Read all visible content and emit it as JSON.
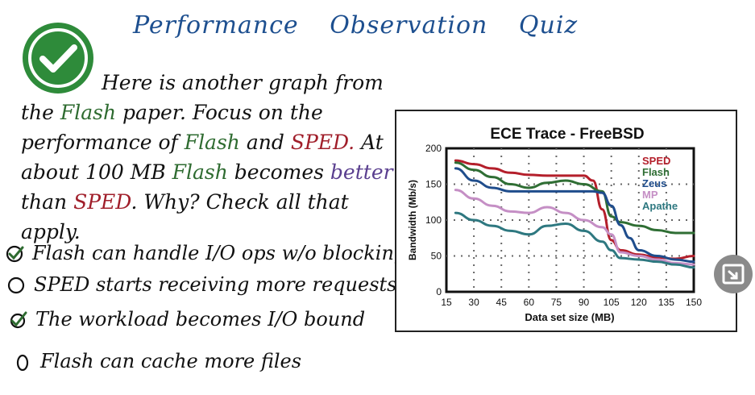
{
  "title": {
    "words": [
      "Performance",
      "Observation",
      "Quiz"
    ]
  },
  "prompt": {
    "line1": "Here is another graph from",
    "line2": {
      "a": "the",
      "b": "Flash",
      "c": "paper. Focus on the"
    },
    "line3": {
      "a": "performance of",
      "b": "Flash",
      "c": "and",
      "d": "SPED.",
      "e": "At"
    },
    "line4": {
      "a": "about 100 MB",
      "b": "Flash",
      "c": "becomes",
      "d": "better"
    },
    "line5": {
      "a": "than",
      "b": "SPED",
      "c": ". Why? Check all that apply."
    }
  },
  "options": [
    {
      "label": "Flash can handle I/O ops w/o blocking",
      "checked": true
    },
    {
      "label": "SPED starts receiving more requests",
      "checked": false
    },
    {
      "label": "The workload becomes I/O bound",
      "checked": true
    },
    {
      "label": "Flash can cache more files",
      "checked": false
    }
  ],
  "icons": {
    "badge": "check-circle-icon",
    "minimize": "minimize-icon"
  },
  "colors": {
    "title": "#1d4f8f",
    "green": "#2e6b30",
    "red": "#a01e2a",
    "purple": "#5a3f8f",
    "badge": "#2e8b3a"
  },
  "chart_data": {
    "type": "line",
    "title": "ECE Trace - FreeBSD",
    "xlabel": "Data set size (MB)",
    "ylabel": "Bandwidth (Mb/s)",
    "xlim": [
      15,
      150
    ],
    "ylim": [
      0,
      200
    ],
    "xticks": [
      15,
      30,
      45,
      60,
      75,
      90,
      105,
      120,
      135,
      150
    ],
    "yticks": [
      0,
      50,
      100,
      150,
      200
    ],
    "grid": true,
    "legend": "top-right",
    "series": [
      {
        "name": "SPED",
        "color": "#b41f2b",
        "x": [
          20,
          30,
          40,
          50,
          60,
          70,
          80,
          90,
          95,
          100,
          105,
          110,
          120,
          130,
          140,
          150
        ],
        "y": [
          183,
          178,
          172,
          166,
          163,
          162,
          162,
          162,
          155,
          115,
          72,
          58,
          52,
          48,
          46,
          50
        ]
      },
      {
        "name": "Flash",
        "color": "#2f6e34",
        "x": [
          20,
          30,
          40,
          50,
          60,
          70,
          80,
          90,
          100,
          105,
          110,
          120,
          130,
          140,
          150
        ],
        "y": [
          180,
          170,
          160,
          150,
          145,
          152,
          155,
          150,
          140,
          105,
          97,
          92,
          86,
          82,
          82
        ]
      },
      {
        "name": "Zeus",
        "color": "#1f4d8c",
        "x": [
          20,
          30,
          40,
          50,
          60,
          70,
          80,
          90,
          95,
          100,
          105,
          110,
          115,
          120,
          130,
          140,
          150
        ],
        "y": [
          172,
          155,
          145,
          140,
          140,
          140,
          140,
          140,
          140,
          138,
          120,
          93,
          75,
          58,
          50,
          45,
          42
        ]
      },
      {
        "name": "MP",
        "color": "#c58fc5",
        "x": [
          20,
          30,
          40,
          50,
          60,
          70,
          80,
          90,
          100,
          105,
          110,
          120,
          130,
          140,
          150
        ],
        "y": [
          142,
          130,
          120,
          112,
          110,
          118,
          110,
          100,
          90,
          80,
          55,
          50,
          45,
          40,
          38
        ]
      },
      {
        "name": "Apathe",
        "color": "#2e7880",
        "x": [
          20,
          30,
          40,
          50,
          60,
          70,
          80,
          90,
          100,
          105,
          110,
          120,
          130,
          140,
          150
        ],
        "y": [
          110,
          100,
          92,
          85,
          80,
          92,
          95,
          85,
          70,
          58,
          47,
          45,
          42,
          38,
          34
        ]
      }
    ]
  }
}
